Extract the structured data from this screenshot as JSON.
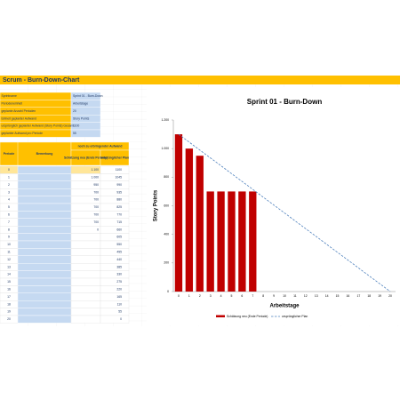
{
  "title": "Scrum - Burn-Down-Chart",
  "info": [
    {
      "label": "Sprintname",
      "value": "Sprint 01 - Burn-Down"
    },
    {
      "label": "Periodeneinheit",
      "value": "Arbeitstage"
    },
    {
      "label": "geplante Anzahl Perioden",
      "value": 20
    },
    {
      "label": "Einheit geplanter Aufwand",
      "value": "Story Points"
    },
    {
      "label": "ursprünglich geplanter Aufwand (Story Points) Gesamt",
      "value": 1100
    },
    {
      "label": "geplanter Aufwand pro Periode",
      "value": 55
    }
  ],
  "table": {
    "headers": {
      "period": "Periode",
      "remark": "Bemerkung",
      "remaining": "noch zu erbringender Aufwand",
      "estimate": "Schätzung neu (Ende Periode)",
      "plan": "ursprünglicher Plan"
    },
    "rows": [
      {
        "period": 0,
        "estimate": {
          "value": 1100,
          "label": "1.100"
        },
        "plan": 1100
      },
      {
        "period": 1,
        "estimate": {
          "value": 1000,
          "label": "1.000"
        },
        "plan": 1045
      },
      {
        "period": 2,
        "estimate": 950,
        "plan": 990
      },
      {
        "period": 3,
        "estimate": 700,
        "plan": 935
      },
      {
        "period": 4,
        "estimate": 700,
        "plan": 880
      },
      {
        "period": 5,
        "estimate": 700,
        "plan": 825
      },
      {
        "period": 6,
        "estimate": 700,
        "plan": 770
      },
      {
        "period": 7,
        "estimate": 700,
        "plan": 715
      },
      {
        "period": 8,
        "estimate": 0,
        "plan": 660
      },
      {
        "period": 9,
        "estimate": null,
        "plan": 605
      },
      {
        "period": 10,
        "estimate": null,
        "plan": 550
      },
      {
        "period": 11,
        "estimate": null,
        "plan": 495
      },
      {
        "period": 12,
        "estimate": null,
        "plan": 440
      },
      {
        "period": 13,
        "estimate": null,
        "plan": 385
      },
      {
        "period": 14,
        "estimate": null,
        "plan": 330
      },
      {
        "period": 15,
        "estimate": null,
        "plan": 275
      },
      {
        "period": 16,
        "estimate": null,
        "plan": 220
      },
      {
        "period": 17,
        "estimate": null,
        "plan": 165
      },
      {
        "period": 18,
        "estimate": null,
        "plan": 110
      },
      {
        "period": 19,
        "estimate": null,
        "plan": 55
      },
      {
        "period": 20,
        "estimate": null,
        "plan": 0
      }
    ]
  },
  "chart": {
    "type": "combo",
    "title": "Sprint 01 - Burn-Down",
    "y_label": "Story Points",
    "x_label": "Arbeitstage",
    "ylim": [
      0,
      1200
    ],
    "yticks": [
      0,
      200,
      400,
      600,
      800,
      {
        "value": 1000,
        "label": "1.000"
      },
      {
        "value": 1200,
        "label": "1.200"
      }
    ],
    "series": [
      {
        "name": "Schätzung neu (Ende Periode)",
        "color": "#c00000",
        "mark": "bar"
      },
      {
        "name": "ursprünglicher Plan",
        "color": "#4f81bd",
        "mark": "dashed-line"
      }
    ],
    "legend": "bottom"
  }
}
